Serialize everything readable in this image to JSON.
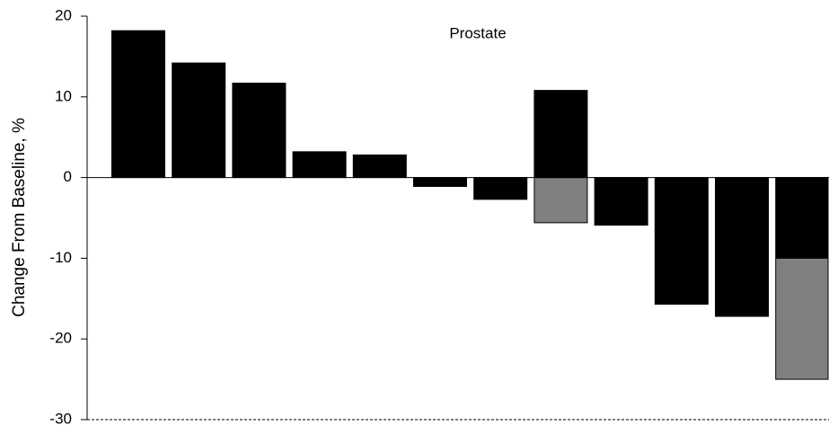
{
  "chart_data": {
    "type": "bar",
    "title": "Prostate",
    "y_label": "Change From Baseline, %",
    "categories": [
      null,
      null,
      null,
      null,
      null,
      null,
      null,
      null,
      null,
      null,
      null,
      null
    ],
    "series": [
      {
        "color": "#000000",
        "values": [
          18.2,
          14.2,
          11.7,
          3.2,
          2.8,
          -1.1,
          -2.7,
          10.8,
          -5.9,
          -15.7,
          -17.2,
          -10
        ]
      },
      {
        "color": "#808080",
        "values": [
          null,
          null,
          null,
          null,
          null,
          null,
          null,
          -5.6,
          null,
          null,
          null,
          -15
        ]
      }
    ],
    "ylim": [
      -30,
      20
    ],
    "yticks": [
      20,
      10,
      0,
      -10,
      -20,
      -30
    ],
    "stacked": true
  }
}
